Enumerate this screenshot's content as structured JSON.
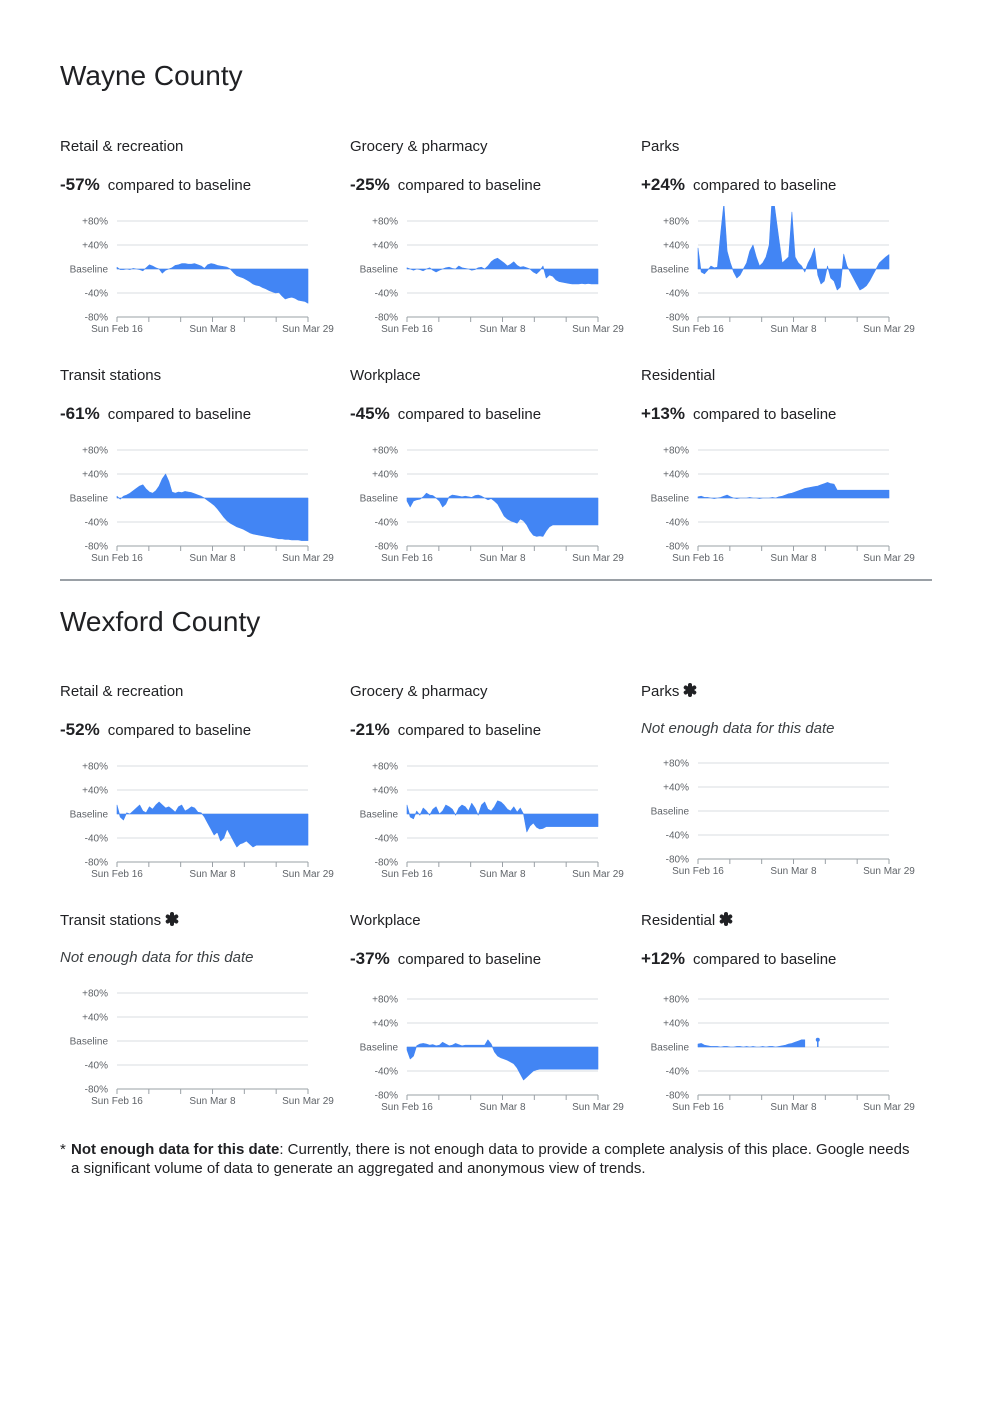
{
  "colors": {
    "series": "#4285f4",
    "grid": "#dadce0",
    "axis": "#9aa0a6",
    "text": "#202124",
    "label": "#5f6368"
  },
  "axis": {
    "y_ticks": [
      "+80%",
      "+40%",
      "Baseline",
      "-40%",
      "-80%"
    ],
    "x_ticks": [
      "Sun Feb 16",
      "Sun Mar 8",
      "Sun Mar 29"
    ]
  },
  "compared_text": "compared to baseline",
  "no_data_text": "Not enough data for this date",
  "counties": [
    {
      "name": "Wayne County",
      "panels": [
        {
          "category": "Retail & recreation",
          "value": "-57%",
          "nodata": false,
          "chart_data": {
            "type": "area",
            "ylim": [
              -80,
              80
            ],
            "x_range": [
              "2020-02-16",
              "2020-03-29"
            ],
            "values": [
              3,
              -1,
              -1,
              0,
              -1,
              1,
              0,
              -1,
              -3,
              2,
              7,
              5,
              2,
              0,
              -7,
              -2,
              0,
              2,
              6,
              7,
              9,
              9,
              8,
              8,
              9,
              7,
              5,
              1,
              7,
              9,
              8,
              6,
              5,
              4,
              3,
              0,
              -6,
              -11,
              -13,
              -15,
              -18,
              -21,
              -25,
              -27,
              -28,
              -31,
              -33,
              -36,
              -38,
              -40,
              -39,
              -45,
              -50,
              -48,
              -47,
              -49,
              -52,
              -53,
              -54,
              -57
            ]
          }
        },
        {
          "category": "Grocery & pharmacy",
          "value": "-25%",
          "nodata": false,
          "chart_data": {
            "type": "area",
            "ylim": [
              -80,
              80
            ],
            "x_range": [
              "2020-02-16",
              "2020-03-29"
            ],
            "values": [
              2,
              0,
              -2,
              0,
              -1,
              -3,
              0,
              2,
              -2,
              -5,
              -2,
              0,
              2,
              3,
              1,
              0,
              5,
              2,
              1,
              0,
              -2,
              -1,
              2,
              3,
              0,
              5,
              12,
              16,
              18,
              14,
              10,
              5,
              8,
              12,
              6,
              3,
              4,
              2,
              0,
              -5,
              -8,
              -3,
              5,
              -15,
              -10,
              -12,
              -18,
              -21,
              -22,
              -23,
              -24,
              -25,
              -25,
              -25,
              -24,
              -25,
              -24,
              -25,
              -25,
              -25
            ]
          }
        },
        {
          "category": "Parks",
          "value": "+24%",
          "nodata": false,
          "chart_data": {
            "type": "area",
            "ylim": [
              -80,
              80
            ],
            "x_range": [
              "2020-02-16",
              "2020-03-29"
            ],
            "values": [
              35,
              -5,
              -8,
              -2,
              5,
              2,
              3,
              60,
              110,
              30,
              10,
              -5,
              -15,
              -10,
              0,
              10,
              30,
              40,
              20,
              5,
              10,
              20,
              40,
              130,
              90,
              50,
              10,
              15,
              20,
              95,
              20,
              10,
              5,
              -5,
              10,
              20,
              35,
              -10,
              -25,
              -20,
              5,
              -15,
              -20,
              -35,
              -30,
              25,
              5,
              -5,
              -15,
              -25,
              -35,
              -32,
              -28,
              -20,
              -10,
              0,
              10,
              15,
              20,
              24
            ]
          }
        },
        {
          "category": "Transit stations",
          "value": "-61%",
          "nodata": false,
          "chart_data": {
            "type": "area",
            "ylim": [
              -80,
              80
            ],
            "x_range": [
              "2020-02-16",
              "2020-03-29"
            ],
            "values": [
              3,
              -2,
              3,
              5,
              8,
              12,
              16,
              20,
              22,
              15,
              10,
              8,
              12,
              20,
              32,
              40,
              28,
              10,
              8,
              10,
              9,
              11,
              10,
              9,
              7,
              5,
              3,
              0,
              -4,
              -8,
              -12,
              -18,
              -25,
              -32,
              -38,
              -42,
              -45,
              -48,
              -50,
              -52,
              -55,
              -58,
              -60,
              -61,
              -62,
              -63,
              -64,
              -65,
              -66,
              -67,
              -68,
              -68,
              -69,
              -69,
              -70,
              -70,
              -70,
              -71,
              -71,
              -71
            ]
          }
        },
        {
          "category": "Workplace",
          "value": "-45%",
          "nodata": false,
          "chart_data": {
            "type": "area",
            "ylim": [
              -80,
              80
            ],
            "x_range": [
              "2020-02-16",
              "2020-03-29"
            ],
            "values": [
              -5,
              -15,
              -5,
              -3,
              -2,
              2,
              8,
              5,
              4,
              0,
              -5,
              -15,
              -10,
              2,
              5,
              4,
              3,
              2,
              3,
              2,
              1,
              4,
              5,
              3,
              0,
              -3,
              -1,
              -5,
              -10,
              -20,
              -30,
              -35,
              -38,
              -40,
              -42,
              -35,
              -38,
              -45,
              -55,
              -62,
              -64,
              -63,
              -64,
              -55,
              -48,
              -45,
              -45,
              -45,
              -45,
              -45,
              -45,
              -45,
              -45,
              -45,
              -45,
              -45,
              -45,
              -45,
              -45,
              -45
            ]
          }
        },
        {
          "category": "Residential",
          "value": "+13%",
          "nodata": false,
          "chart_data": {
            "type": "area",
            "ylim": [
              -80,
              80
            ],
            "x_range": [
              "2020-02-16",
              "2020-03-29"
            ],
            "values": [
              2,
              3,
              1,
              1,
              0,
              -1,
              0,
              1,
              3,
              5,
              2,
              0,
              -1,
              0,
              0,
              0,
              1,
              0,
              0,
              -1,
              0,
              0,
              0,
              1,
              0,
              2,
              3,
              5,
              7,
              8,
              10,
              12,
              14,
              16,
              17,
              18,
              19,
              20,
              22,
              24,
              26,
              24,
              23,
              13,
              13,
              13,
              13,
              13,
              13,
              13,
              13,
              13,
              13,
              13,
              13,
              13,
              13,
              13,
              13,
              13
            ]
          }
        }
      ]
    },
    {
      "name": "Wexford County",
      "panels": [
        {
          "category": "Retail & recreation",
          "value": "-52%",
          "nodata": false,
          "chart_data": {
            "type": "area",
            "ylim": [
              -80,
              80
            ],
            "x_range": [
              "2020-02-16",
              "2020-03-29"
            ],
            "values": [
              15,
              -5,
              -10,
              2,
              0,
              5,
              10,
              15,
              5,
              2,
              12,
              8,
              15,
              20,
              15,
              10,
              12,
              8,
              3,
              12,
              15,
              5,
              8,
              12,
              10,
              3,
              2,
              -5,
              -15,
              -25,
              -35,
              -30,
              -45,
              -40,
              -25,
              -35,
              -45,
              -55,
              -50,
              -48,
              -45,
              -50,
              -55,
              -52,
              -52,
              -52,
              -52,
              -52,
              -52,
              -52,
              -52,
              -52,
              -52,
              -52,
              -52,
              -52,
              -52,
              -52,
              -52,
              -52
            ]
          }
        },
        {
          "category": "Grocery & pharmacy",
          "value": "-21%",
          "nodata": false,
          "chart_data": {
            "type": "area",
            "ylim": [
              -80,
              80
            ],
            "x_range": [
              "2020-02-16",
              "2020-03-29"
            ],
            "values": [
              15,
              -5,
              -8,
              5,
              -2,
              10,
              5,
              -2,
              8,
              12,
              0,
              5,
              15,
              12,
              8,
              -2,
              10,
              15,
              12,
              5,
              18,
              10,
              -2,
              15,
              20,
              8,
              5,
              12,
              22,
              20,
              15,
              8,
              5,
              12,
              3,
              10,
              0,
              -30,
              -20,
              -15,
              -22,
              -25,
              -24,
              -21,
              -21,
              -21,
              -21,
              -21,
              -21,
              -21,
              -21,
              -21,
              -21,
              -21,
              -21,
              -21,
              -21,
              -21,
              -21,
              -21
            ]
          }
        },
        {
          "category": "Parks",
          "value": "",
          "nodata": true,
          "chart_data": {
            "type": "area",
            "ylim": [
              -80,
              80
            ],
            "x_range": [
              "2020-02-16",
              "2020-03-29"
            ],
            "values": []
          }
        },
        {
          "category": "Transit stations",
          "value": "",
          "nodata": true,
          "chart_data": {
            "type": "area",
            "ylim": [
              -80,
              80
            ],
            "x_range": [
              "2020-02-16",
              "2020-03-29"
            ],
            "values": []
          }
        },
        {
          "category": "Workplace",
          "value": "-37%",
          "nodata": false,
          "chart_data": {
            "type": "area",
            "ylim": [
              -80,
              80
            ],
            "x_range": [
              "2020-02-16",
              "2020-03-29"
            ],
            "values": [
              -5,
              -20,
              -15,
              2,
              5,
              6,
              5,
              3,
              4,
              2,
              3,
              8,
              5,
              2,
              3,
              6,
              4,
              2,
              3,
              3,
              3,
              3,
              3,
              3,
              3,
              12,
              5,
              -8,
              -15,
              -18,
              -20,
              -22,
              -25,
              -28,
              -35,
              -45,
              -55,
              -50,
              -45,
              -40,
              -38,
              -37,
              -37,
              -37,
              -37,
              -37,
              -37,
              -37,
              -37,
              -37,
              -37,
              -37,
              -37,
              -37,
              -37,
              -37,
              -37,
              -37,
              -37,
              -37
            ]
          }
        },
        {
          "category": "Residential",
          "value": "+12%",
          "nodata": false,
          "chart_data": {
            "type": "area",
            "ylim": [
              -80,
              80
            ],
            "x_range": [
              "2020-02-16",
              "2020-03-29"
            ],
            "values": [
              5,
              6,
              3,
              2,
              1,
              1,
              1,
              0,
              1,
              1,
              0,
              0,
              1,
              1,
              0,
              1,
              0,
              1,
              0,
              0,
              1,
              0,
              1,
              1,
              0,
              1,
              2,
              3,
              5,
              6,
              8,
              10,
              12,
              12,
              null,
              null,
              null,
              12,
              null,
              null,
              null,
              null,
              null,
              null,
              null,
              null,
              null,
              null,
              null,
              null,
              null,
              null,
              null,
              null,
              null,
              null,
              null,
              null,
              null,
              null
            ]
          }
        }
      ]
    }
  ],
  "footnote": {
    "marker": "*",
    "bold": "Not enough data for this date",
    "text": ": Currently, there is not enough data to provide a complete analysis of this place. Google needs a significant volume of data to generate an aggregated and anonymous view of trends."
  }
}
